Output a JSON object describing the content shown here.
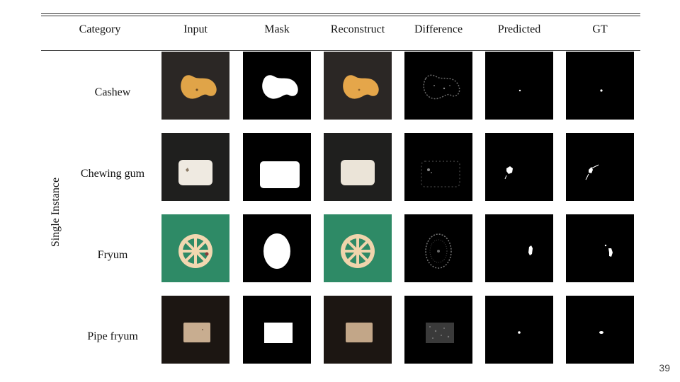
{
  "table": {
    "headers": {
      "category": "Category",
      "input": "Input",
      "mask": "Mask",
      "reconstruct": "Reconstruct",
      "difference": "Difference",
      "predicted": "Predicted",
      "gt": "GT"
    },
    "group_label": "Single Instance",
    "rows": [
      {
        "category": "Cashew"
      },
      {
        "category": "Chewing gum"
      },
      {
        "category": "Fryum"
      },
      {
        "category": "Pipe fryum"
      }
    ]
  },
  "page_number": "39",
  "colors": {
    "cashew_bg": "#2b2725",
    "cashew_nut": "#e0a448",
    "gum_bg": "#1f1f1e",
    "gum_piece": "#efeae1",
    "fryum_bg": "#2e8a66",
    "fryum_piece": "#f2d7b0",
    "pipe_bg": "#1c1612",
    "pipe_piece": "#c8ad90"
  }
}
